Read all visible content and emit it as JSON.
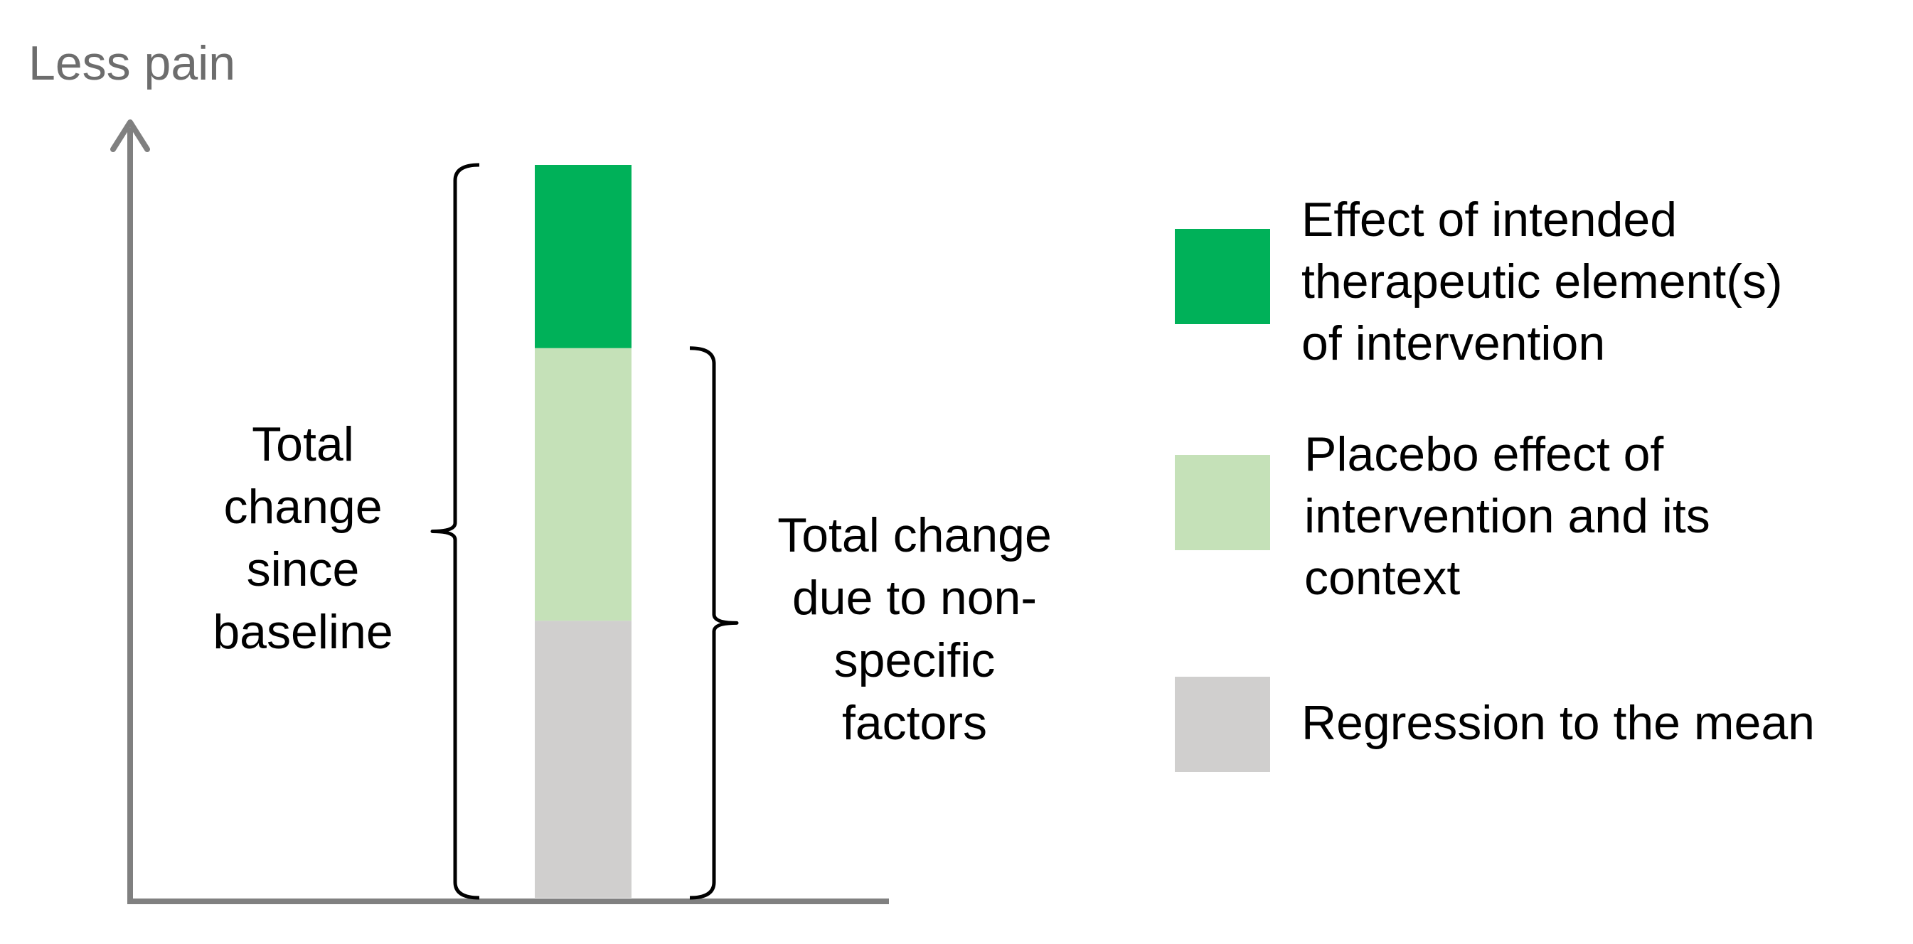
{
  "chart_data": {
    "type": "bar",
    "stacked": true,
    "ylabel": "Less pain",
    "colors": {
      "axis": "#808080",
      "bracket": "#000000",
      "ylabel": "#6d6d6d"
    },
    "series": [
      {
        "name": "Regression to the mean",
        "value": 0.378,
        "color": "#d0cfce"
      },
      {
        "name": "Placebo effect of intervention and its context",
        "value": 0.372,
        "color": "#c5e1b8"
      },
      {
        "name": "Effect of intended therapeutic element(s) of intervention",
        "value": 0.25,
        "color": "#00b159"
      }
    ],
    "legend": {
      "position": "right",
      "entries": [
        {
          "series": 2,
          "lines": [
            "Effect of intended",
            "therapeutic element(s)",
            "of intervention"
          ]
        },
        {
          "series": 1,
          "lines": [
            "Placebo effect of",
            "intervention and its",
            "context"
          ]
        },
        {
          "series": 0,
          "lines": [
            "Regression to the mean"
          ]
        }
      ]
    },
    "annotations": {
      "total": {
        "lines": [
          "Total",
          "change",
          "since",
          "baseline"
        ],
        "spans_series": [
          0,
          1,
          2
        ],
        "side": "left"
      },
      "nonspecific": {
        "lines": [
          "Total change",
          "due to non-",
          "specific",
          "factors"
        ],
        "spans_series": [
          0,
          1
        ],
        "side": "right"
      }
    }
  }
}
